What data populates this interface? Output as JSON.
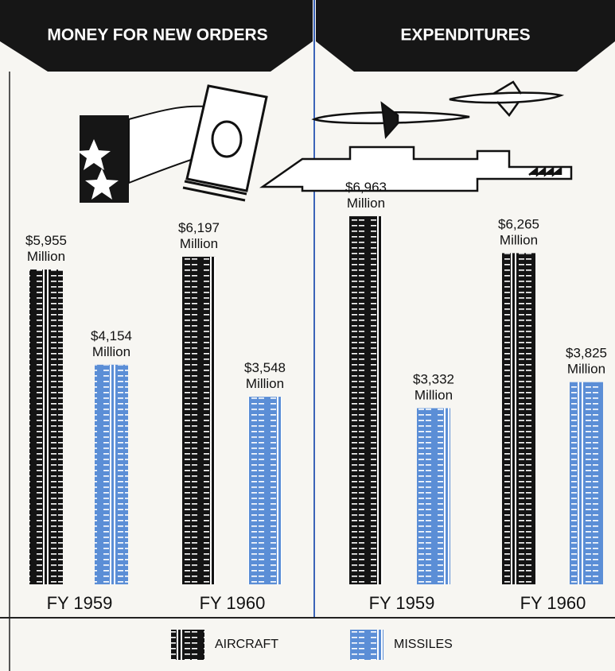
{
  "chart_data": [
    {
      "type": "bar",
      "title": "MONEY FOR NEW ORDERS",
      "categories": [
        "FY 1959",
        "FY 1960"
      ],
      "series": [
        {
          "color": "#141414",
          "values": [
            5955,
            6197
          ],
          "value_labels": [
            "$5,955 Million",
            "$6,197 Million"
          ]
        },
        {
          "color": "#5b8ed6",
          "values": [
            4154,
            3548
          ],
          "value_labels": [
            "$4,154 Million",
            "$3,548 Million"
          ]
        }
      ]
    },
    {
      "type": "bar",
      "title": "EXPENDITURES",
      "categories": [
        "FY 1959",
        "FY 1960"
      ],
      "series": [
        {
          "color": "#141414",
          "values": [
            6963,
            6265
          ],
          "value_labels": [
            "$6,963 Million",
            "$6,265 Million"
          ]
        },
        {
          "color": "#5b8ed6",
          "values": [
            3332,
            3825
          ],
          "value_labels": [
            "$3,332 Million",
            "$3,825 Million"
          ]
        }
      ]
    }
  ],
  "legend": [
    "AIRCRAFT",
    "MISSILES"
  ]
}
